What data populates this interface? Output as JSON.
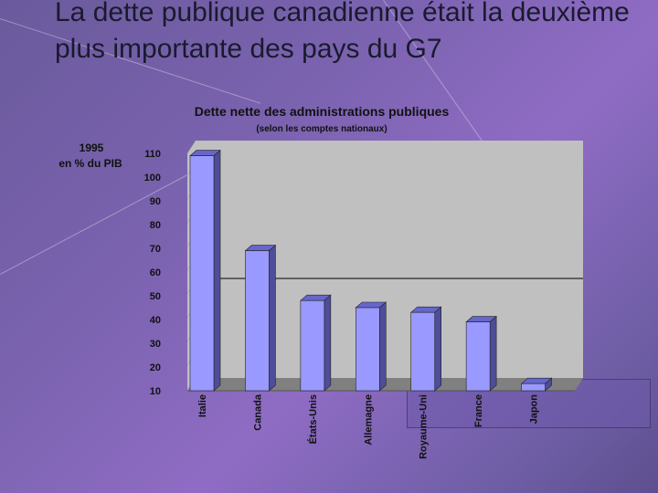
{
  "slide": {
    "title": "La dette publique canadienne était la deuxième plus importante des pays du G7"
  },
  "colors": {
    "background": "#7b63b0",
    "bar_front": "#9999ff",
    "bar_side": "#4d4d99",
    "bar_top": "#6666cc",
    "plot_area": "#c0c0c0",
    "reference_line": "#000000"
  },
  "chart_data": {
    "type": "bar",
    "title": "Dette nette des administrations publiques",
    "subtitle": "(selon les comptes nationaux)",
    "ylabel_line1": "1995",
    "ylabel_line2": "en % du PIB",
    "categories": [
      "Italie",
      "Canada",
      "États-Unis",
      "Allemagne",
      "Royaume-Uni",
      "France",
      "Japon"
    ],
    "values": [
      109,
      69,
      48,
      45,
      43,
      39,
      13
    ],
    "ylim": [
      10,
      110
    ],
    "yticks": [
      10,
      20,
      30,
      40,
      50,
      60,
      70,
      80,
      90,
      100,
      110
    ],
    "reference_line_value": 55,
    "grid": false,
    "legend": "none"
  }
}
